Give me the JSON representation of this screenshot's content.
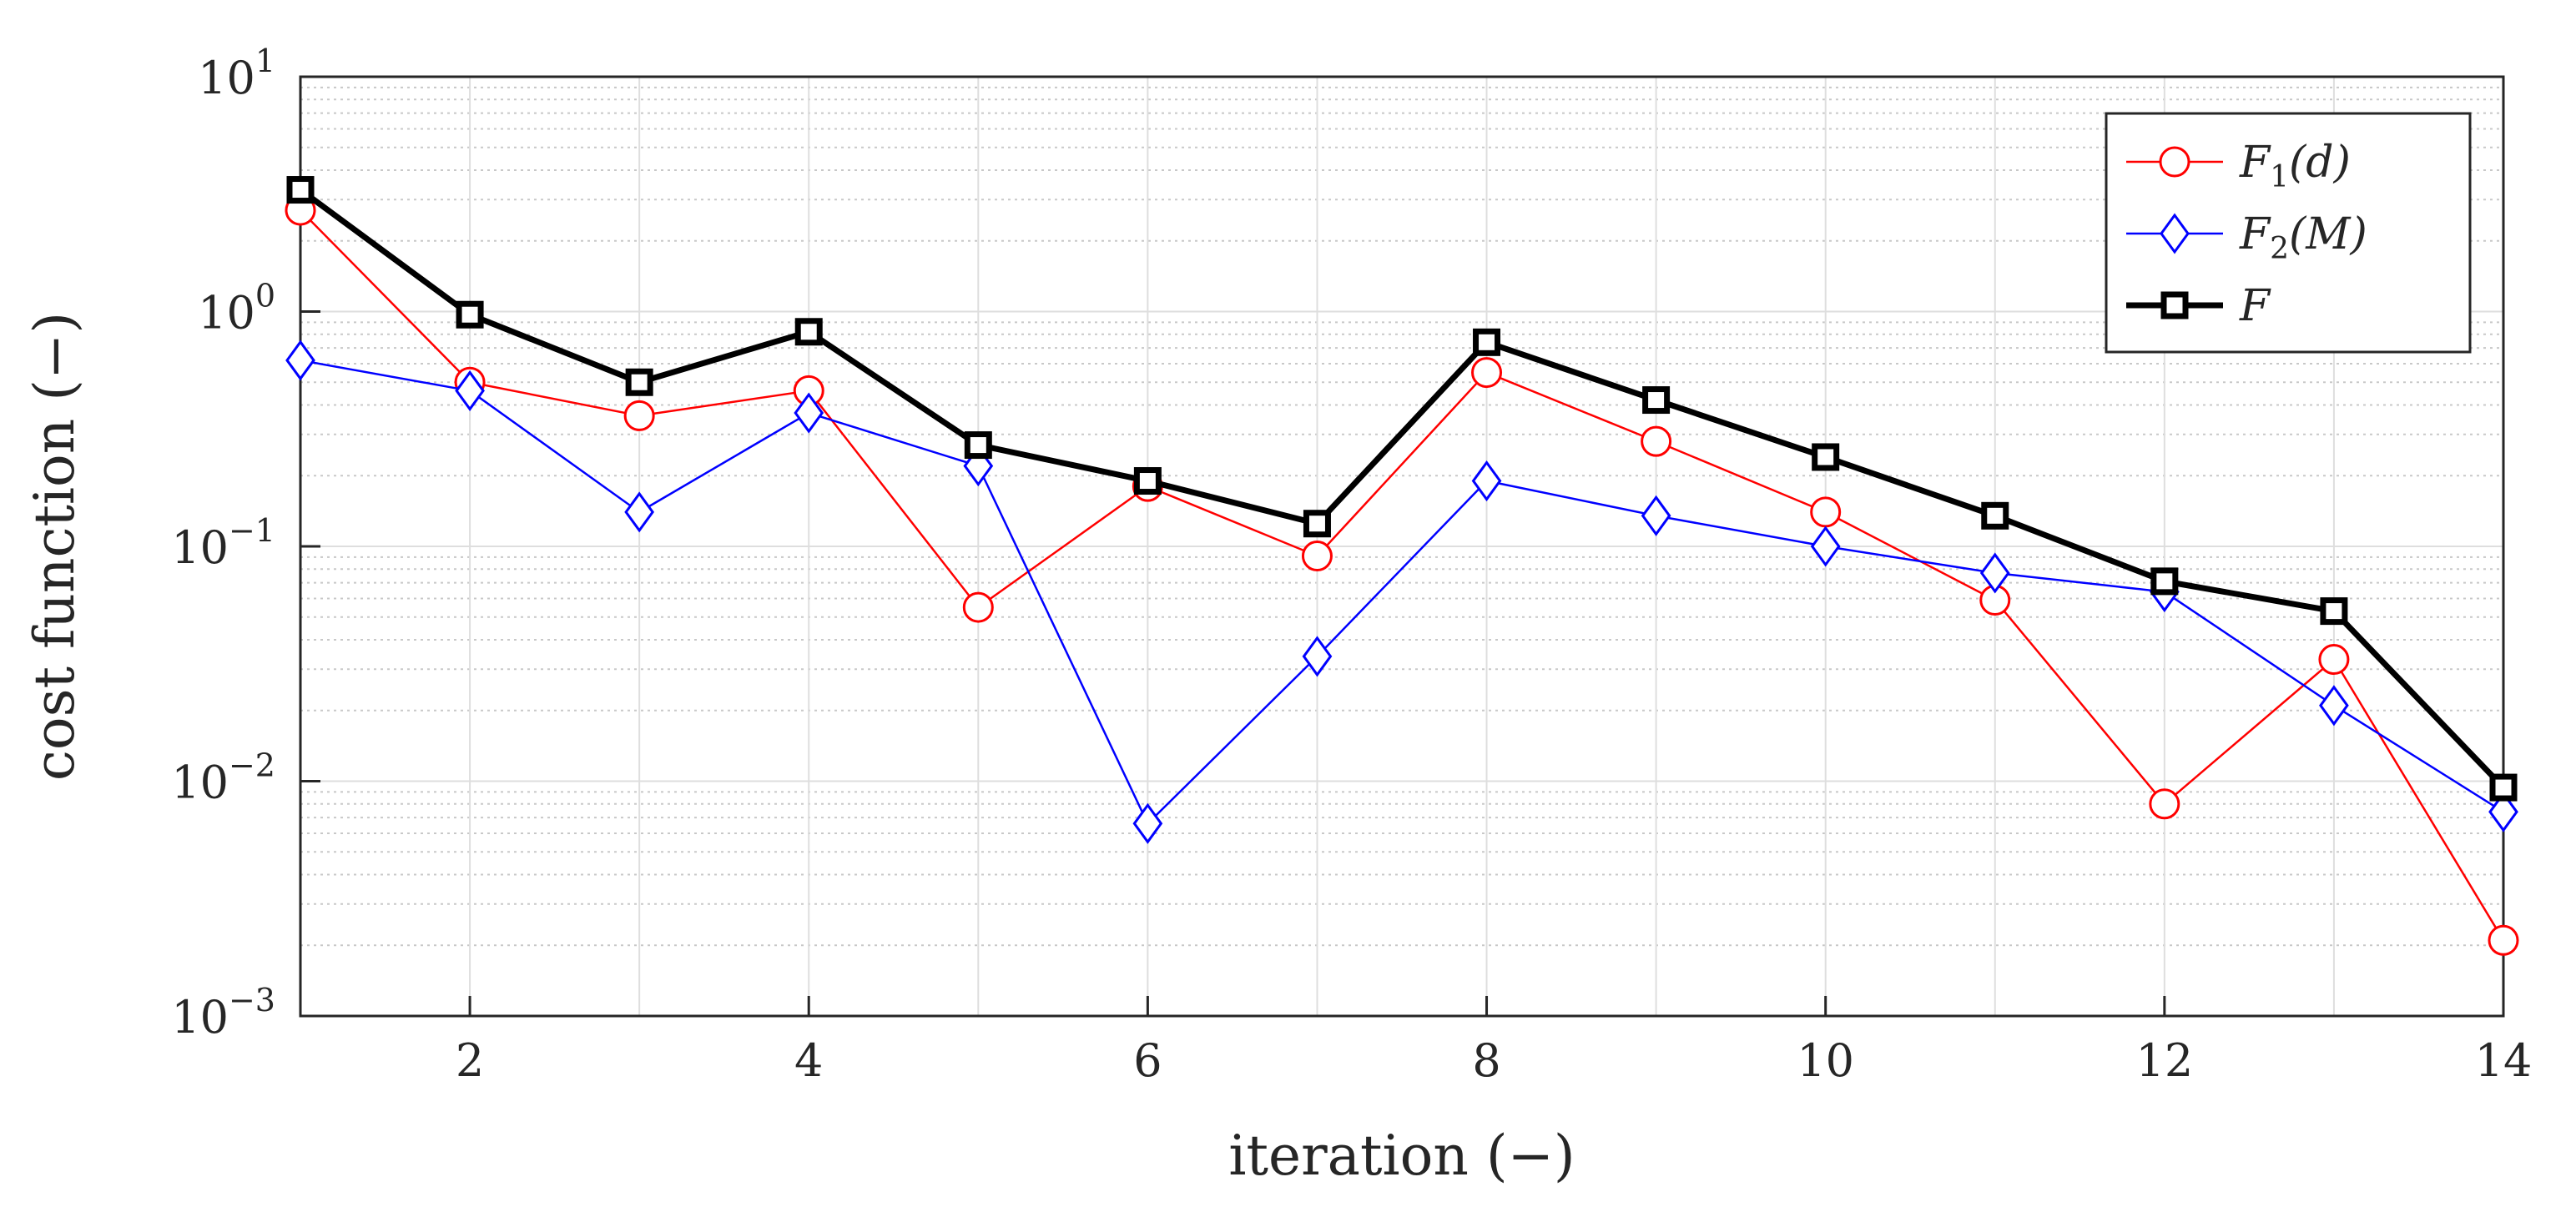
{
  "chart_data": {
    "type": "line",
    "y_scale": "log",
    "xlabel": "iteration (−)",
    "ylabel": "cost function (−)",
    "xlim": [
      1,
      14
    ],
    "ylim": [
      0.001,
      10
    ],
    "x_ticks": [
      2,
      4,
      6,
      8,
      10,
      12,
      14
    ],
    "y_ticks": [
      {
        "value": 0.001,
        "base": "10",
        "exp": "−3"
      },
      {
        "value": 0.01,
        "base": "10",
        "exp": "−2"
      },
      {
        "value": 0.1,
        "base": "10",
        "exp": "−1"
      },
      {
        "value": 1,
        "base": "10",
        "exp": "0"
      },
      {
        "value": 10,
        "base": "10",
        "exp": "1"
      }
    ],
    "grid": true,
    "minor_grid": true,
    "legend_position": "top-right",
    "x": [
      1,
      2,
      3,
      4,
      5,
      6,
      7,
      8,
      9,
      10,
      11,
      12,
      13,
      14
    ],
    "series": [
      {
        "name": "F1(d)",
        "label_main": "F",
        "label_sub": "1",
        "label_arg": "(d)",
        "color": "#ff0000",
        "marker": "circle",
        "values": [
          2.7,
          0.5,
          0.36,
          0.46,
          0.055,
          0.18,
          0.091,
          0.55,
          0.28,
          0.14,
          0.059,
          0.008,
          0.033,
          0.0021
        ]
      },
      {
        "name": "F2(M)",
        "label_main": "F",
        "label_sub": "2",
        "label_arg": "(M)",
        "color": "#0000ff",
        "marker": "diamond",
        "values": [
          0.62,
          0.46,
          0.14,
          0.37,
          0.22,
          0.0066,
          0.034,
          0.19,
          0.135,
          0.1,
          0.077,
          0.064,
          0.021,
          0.0074
        ]
      },
      {
        "name": "F",
        "label_main": "F",
        "label_sub": "",
        "label_arg": "",
        "color": "#000000",
        "marker": "square",
        "values": [
          3.3,
          0.97,
          0.5,
          0.82,
          0.27,
          0.19,
          0.125,
          0.74,
          0.42,
          0.24,
          0.135,
          0.071,
          0.053,
          0.0094
        ]
      }
    ]
  }
}
